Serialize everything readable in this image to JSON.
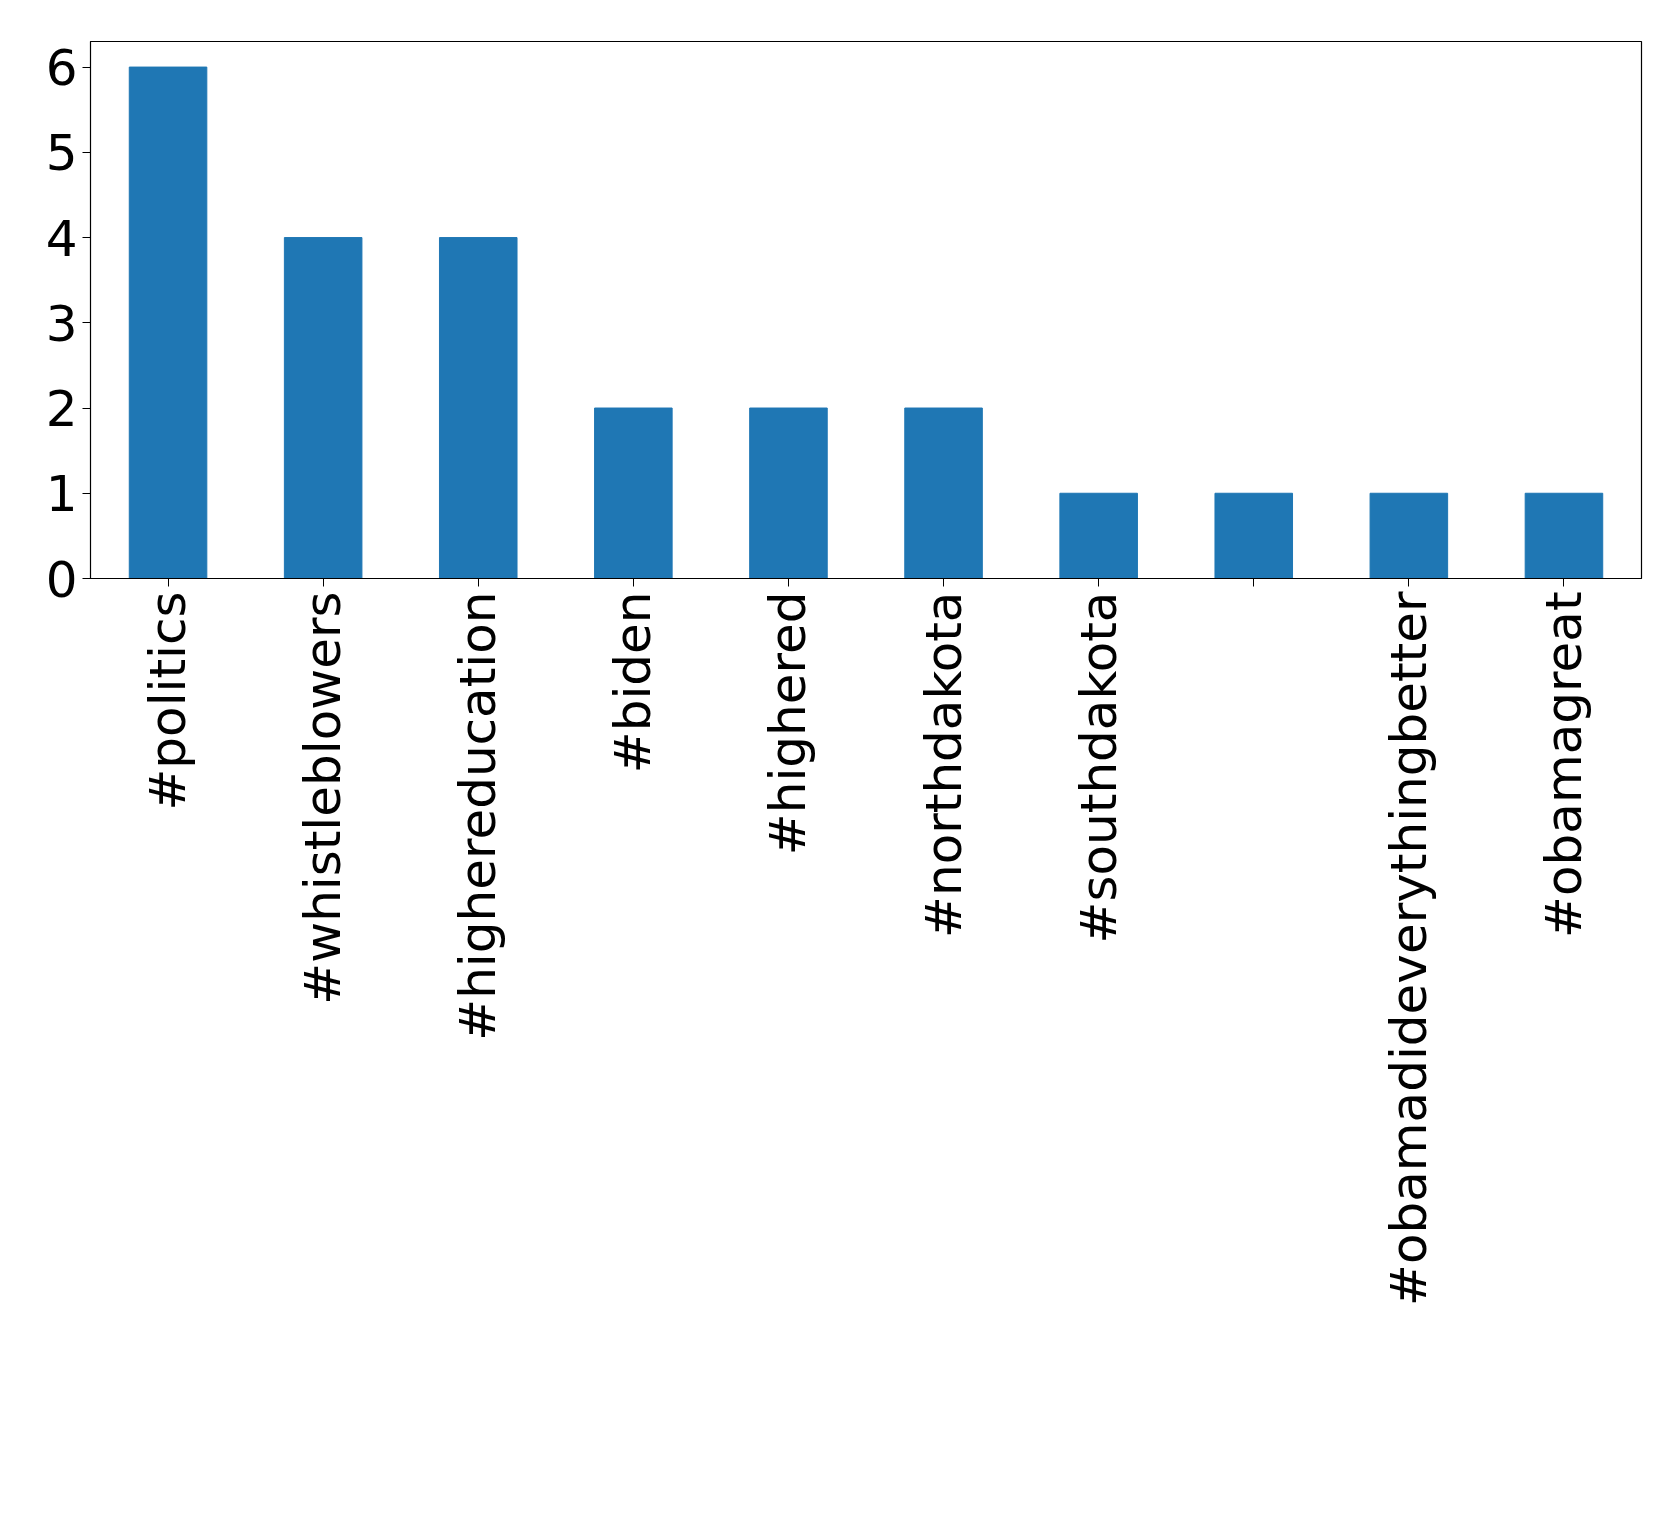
{
  "chart_data": {
    "type": "bar",
    "categories": [
      "#politics",
      "#whistleblowers",
      "#highereducation",
      "#biden",
      "#highered",
      "#northdakota",
      "#southdakota",
      null,
      "#obamadideverythingbetter",
      "#obamagreat"
    ],
    "values": [
      6,
      4,
      4,
      2,
      2,
      2,
      1,
      1,
      1,
      1
    ],
    "color": "#1f77b4",
    "ylim": [
      0,
      6.3
    ],
    "yticks": [
      0,
      1,
      2,
      3,
      4,
      5,
      6
    ],
    "grid": false
  }
}
